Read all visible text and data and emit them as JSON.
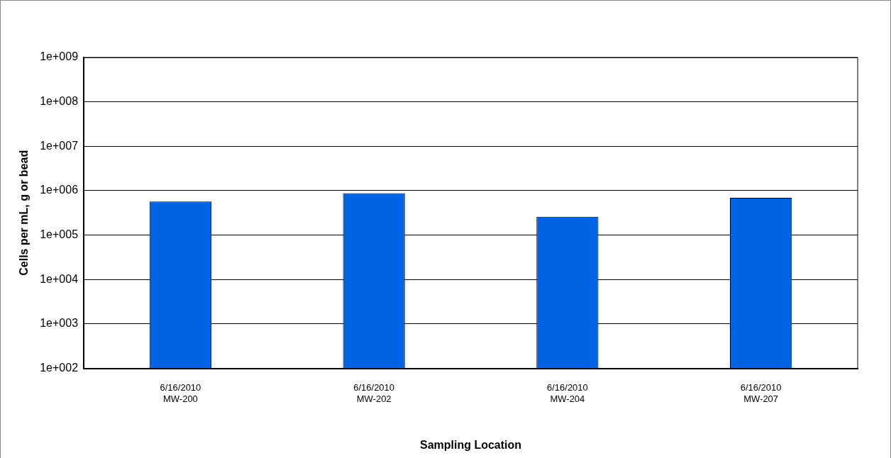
{
  "chart_data": {
    "type": "bar",
    "xlabel": "Sampling Location",
    "ylabel": "Cells per mL, g or bead",
    "categories": [
      "6/16/2010\nMW-200",
      "6/16/2010\nMW-202",
      "6/16/2010\nMW-204",
      "6/16/2010\nMW-207"
    ],
    "values": [
      570000,
      880000,
      260000,
      690000
    ],
    "color": "#0063e3",
    "log": "y",
    "ylim": [
      100,
      1000000000
    ],
    "yticks": [
      {
        "value": 100,
        "label": "1e+002"
      },
      {
        "value": 1000,
        "label": "1e+003"
      },
      {
        "value": 10000,
        "label": "1e+004"
      },
      {
        "value": 100000,
        "label": "1e+005"
      },
      {
        "value": 1000000,
        "label": "1e+006"
      },
      {
        "value": 10000000,
        "label": "1e+007"
      },
      {
        "value": 100000000,
        "label": "1e+008"
      },
      {
        "value": 1000000000,
        "label": "1e+009"
      }
    ],
    "grid": "y"
  }
}
